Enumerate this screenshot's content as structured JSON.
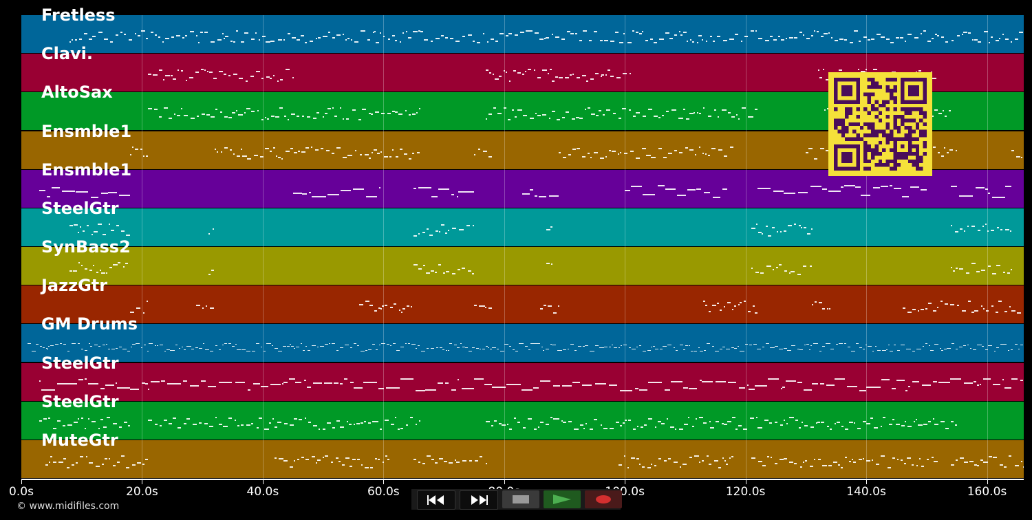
{
  "app": {
    "copyright": "© www.midifiles.com"
  },
  "tracks": [
    {
      "name": "Fretless",
      "color": "#006699"
    },
    {
      "name": "Clavi.",
      "color": "#990033"
    },
    {
      "name": "AltoSax",
      "color": "#009926"
    },
    {
      "name": "Ensmble1",
      "color": "#996600"
    },
    {
      "name": "Ensmble1",
      "color": "#660099"
    },
    {
      "name": "SteelGtr",
      "color": "#009999"
    },
    {
      "name": "SynBass2",
      "color": "#999900"
    },
    {
      "name": "JazzGtr",
      "color": "#992600"
    },
    {
      "name": "GM Drums",
      "color": "#006699"
    },
    {
      "name": "SteelGtr",
      "color": "#990033"
    },
    {
      "name": "SteelGtr",
      "color": "#009926"
    },
    {
      "name": "MuteGtr",
      "color": "#996600"
    }
  ],
  "timeline": {
    "ticks": [
      "0.0s",
      "20.0s",
      "40.0s",
      "60.0s",
      "80.0s",
      "100.0s",
      "120.0s",
      "140.0s",
      "160.0s"
    ],
    "tick_values": [
      0,
      20,
      40,
      60,
      80,
      100,
      120,
      140,
      160
    ],
    "max_seconds": 166
  },
  "transport": {
    "rewind_icon": "rewind-icon",
    "forward_icon": "fast-forward-icon",
    "stop_icon": "stop-icon",
    "play_icon": "play-icon",
    "record_icon": "record-icon"
  },
  "overlay": {
    "qr_icon": "qr-code-icon"
  }
}
